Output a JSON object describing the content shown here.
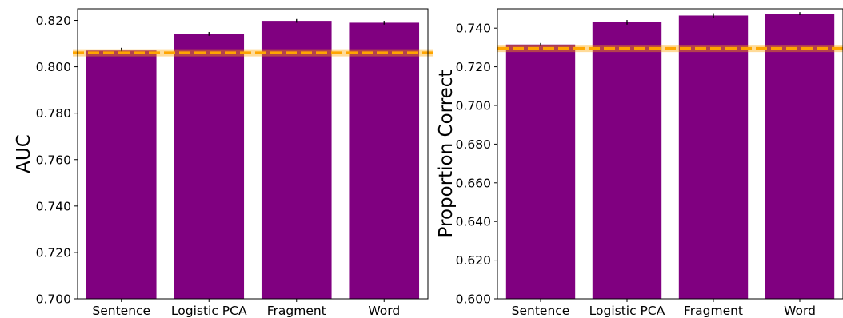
{
  "chart_data": [
    {
      "type": "bar",
      "categories": [
        "Sentence",
        "Logistic PCA",
        "Fragment",
        "Word"
      ],
      "values": [
        0.807,
        0.8142,
        0.8198,
        0.819
      ],
      "errors": [
        0.0012,
        0.0008,
        0.0008,
        0.0008
      ],
      "ylabel": "AUC",
      "ylim": [
        0.7,
        0.825
      ],
      "yticks": [
        0.7,
        0.72,
        0.74,
        0.76,
        0.78,
        0.8,
        0.82
      ],
      "ytick_labels": [
        "0.700",
        "0.720",
        "0.740",
        "0.760",
        "0.780",
        "0.800",
        "0.820"
      ],
      "reference_line": 0.806,
      "bar_color": "#800080",
      "reference_color": "#FFA500"
    },
    {
      "type": "bar",
      "categories": [
        "Sentence",
        "Logistic PCA",
        "Fragment",
        "Word"
      ],
      "values": [
        0.7315,
        0.743,
        0.7465,
        0.7475
      ],
      "errors": [
        0.0008,
        0.0012,
        0.0012,
        0.0008
      ],
      "ylabel": "Proportion Correct",
      "ylim": [
        0.6,
        0.75
      ],
      "yticks": [
        0.6,
        0.62,
        0.64,
        0.66,
        0.68,
        0.7,
        0.72,
        0.74
      ],
      "ytick_labels": [
        "0.600",
        "0.620",
        "0.640",
        "0.660",
        "0.680",
        "0.700",
        "0.720",
        "0.740"
      ],
      "reference_line": 0.7295,
      "bar_color": "#800080",
      "reference_color": "#FFA500"
    }
  ]
}
